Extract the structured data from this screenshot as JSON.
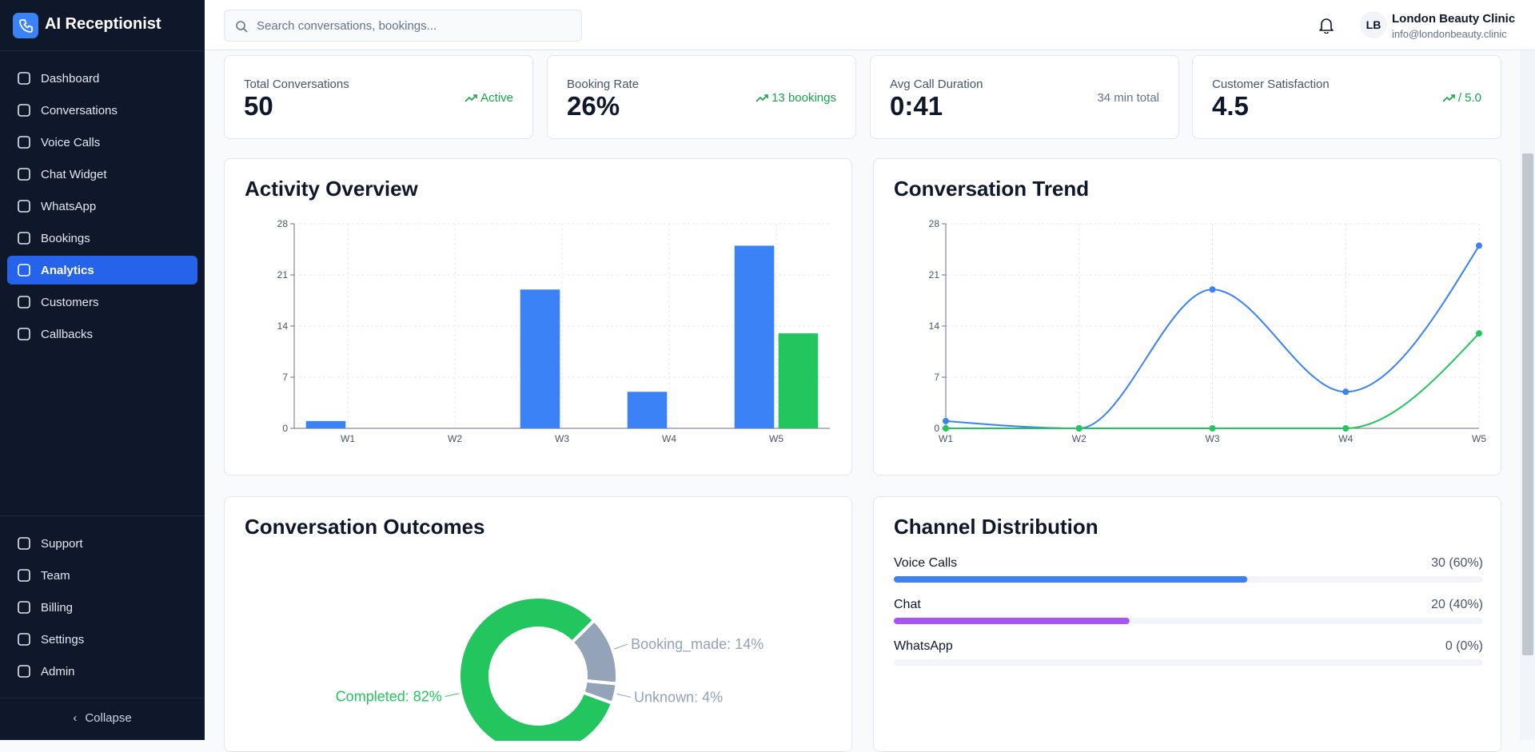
{
  "sidebar": {
    "brand": "AI Receptionist",
    "nav": [
      "Dashboard",
      "Conversations",
      "Voice Calls",
      "Chat Widget",
      "WhatsApp",
      "Bookings",
      "Analytics",
      "Customers",
      "Callbacks"
    ],
    "bottom_nav": [
      "Support",
      "Team",
      "Billing",
      "Settings",
      "Admin"
    ],
    "collapse": "Collapse"
  },
  "header": {
    "search_placeholder": "Search conversations, bookings...",
    "avatar": "LB",
    "name": "London Beauty Clinic",
    "email": "info@londonbeauty.clinic"
  },
  "stats": [
    {
      "label": "Total Conversations",
      "value": "50",
      "note": "Active"
    },
    {
      "label": "Booking Rate",
      "value": "26%",
      "note": "13 bookings"
    },
    {
      "label": "Avg Call Duration",
      "value": "0:41",
      "note": "34 min total"
    },
    {
      "label": "Customer Satisfaction",
      "value": "4.5",
      "note": "/ 5.0"
    }
  ],
  "chart_data": [
    {
      "type": "bar",
      "title": "Activity Overview",
      "categories": [
        "W1",
        "W2",
        "W3",
        "W4",
        "W5"
      ],
      "series": [
        {
          "color": "#3b82f6",
          "values": [
            1,
            0,
            19,
            5,
            25
          ]
        },
        {
          "color": "#22c55e",
          "values": [
            0,
            0,
            0,
            0,
            13
          ]
        }
      ],
      "ylim": [
        0,
        28
      ],
      "yticks": [
        0,
        7,
        14,
        21,
        28
      ],
      "grid": true
    },
    {
      "type": "line",
      "title": "Conversation Trend",
      "categories": [
        "W1",
        "W2",
        "W3",
        "W4",
        "W5"
      ],
      "series": [
        {
          "color": "#3b82f6",
          "values": [
            1,
            0,
            19,
            5,
            25
          ]
        },
        {
          "color": "#22c55e",
          "values": [
            0,
            0,
            0,
            0,
            13
          ]
        }
      ],
      "ylim": [
        0,
        28
      ],
      "yticks": [
        0,
        7,
        14,
        21,
        28
      ],
      "grid": true
    },
    {
      "type": "donut",
      "title": "Conversation Outcomes",
      "values": [
        82,
        14,
        4
      ],
      "value_labels": [
        "Completed: 82%",
        "Booking_made: 14%",
        "Unknown: 4%"
      ],
      "colors": [
        "#22c55e",
        "#94a3b8",
        "#94a3b8"
      ]
    },
    {
      "type": "bar",
      "orientation": "horizontal",
      "title": "Channel Distribution",
      "categories": [
        "Voice Calls",
        "Chat",
        "WhatsApp"
      ],
      "values": [
        30,
        20,
        0
      ],
      "value_labels": [
        "30 (60%)",
        "20 (40%)",
        "0 (0%)"
      ],
      "colors": [
        "#3b82f6",
        "#a855f7",
        "#22c55e"
      ]
    }
  ]
}
